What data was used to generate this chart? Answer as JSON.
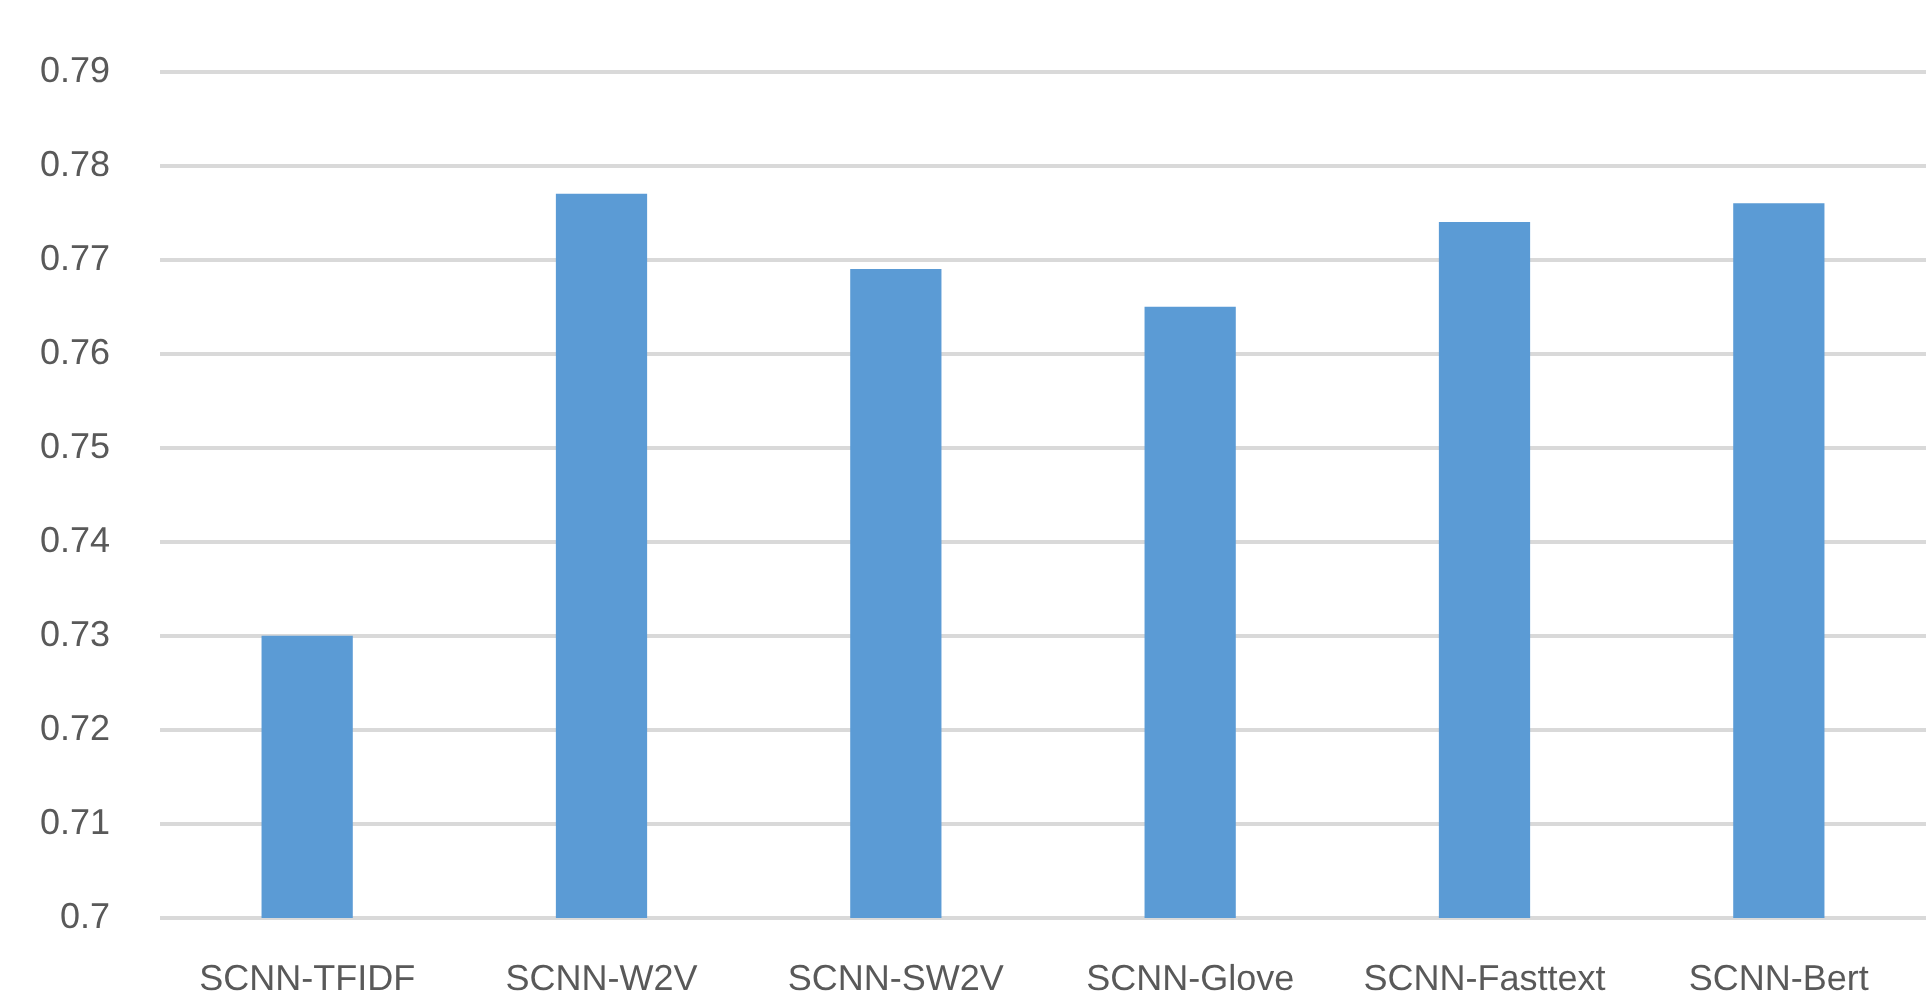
{
  "chart_data": {
    "type": "bar",
    "categories": [
      "SCNN-TFIDF",
      "SCNN-W2V",
      "SCNN-SW2V",
      "SCNN-Glove",
      "SCNN-Fasttext",
      "SCNN-Bert"
    ],
    "values": [
      0.73,
      0.777,
      0.769,
      0.765,
      0.774,
      0.776
    ],
    "color": "#5b9bd5",
    "ylim": [
      0.7,
      0.79
    ],
    "yticks": [
      0.7,
      0.71,
      0.72,
      0.73,
      0.74,
      0.75,
      0.76,
      0.77,
      0.78,
      0.79
    ],
    "grid": "y"
  }
}
